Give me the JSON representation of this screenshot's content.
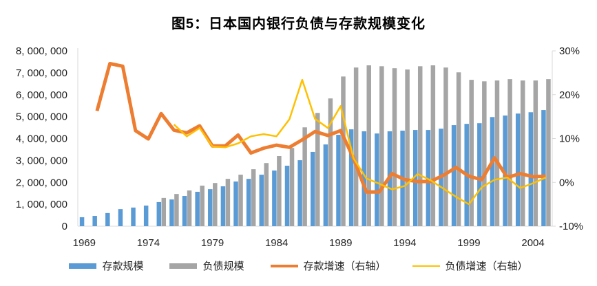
{
  "title": "图5：日本国内银行负债与存款规模变化",
  "chart_data": {
    "type": "bar+line",
    "title": "图5：日本国内银行负债与存款规模变化",
    "x": [
      1969,
      1970,
      1971,
      1972,
      1973,
      1974,
      1975,
      1976,
      1977,
      1978,
      1979,
      1980,
      1981,
      1982,
      1983,
      1984,
      1985,
      1986,
      1987,
      1988,
      1989,
      1990,
      1991,
      1992,
      1993,
      1994,
      1995,
      1996,
      1997,
      1998,
      1999,
      2000,
      2001,
      2002,
      2003,
      2004,
      2005
    ],
    "x_tick_labels": [
      "1969",
      "1974",
      "1979",
      "1984",
      "1989",
      "1994",
      "1999",
      "2004"
    ],
    "left_axis": {
      "ylim": [
        0,
        8000000
      ],
      "tick_labels": [
        "0",
        "1, 000, 000",
        "2, 000, 000",
        "3, 000, 000",
        "4, 000, 000",
        "5, 000, 000",
        "6, 000, 000",
        "7, 000, 000",
        "8, 000, 000"
      ]
    },
    "right_axis": {
      "ylim": [
        -10,
        30
      ],
      "tick_labels": [
        "-10%",
        "0%",
        "10%",
        "20%",
        "30%"
      ]
    },
    "legend_position": "bottom",
    "series": [
      {
        "name": "存款规模",
        "type": "bar",
        "axis": "left",
        "color": "#5B9BD5",
        "values": [
          410000,
          470000,
          600000,
          780000,
          850000,
          940000,
          1100000,
          1220000,
          1380000,
          1570000,
          1690000,
          1820000,
          2040000,
          2160000,
          2350000,
          2540000,
          2760000,
          3010000,
          3390000,
          3730000,
          4170000,
          4420000,
          4330000,
          4230000,
          4330000,
          4360000,
          4390000,
          4390000,
          4450000,
          4610000,
          4670000,
          4700000,
          4980000,
          5050000,
          5140000,
          5200000,
          5300000
        ]
      },
      {
        "name": "负债规模",
        "type": "bar",
        "axis": "left",
        "color": "#A5A5A5",
        "values": [
          null,
          null,
          null,
          null,
          null,
          null,
          1290000,
          1470000,
          1630000,
          1850000,
          1970000,
          2160000,
          2350000,
          2600000,
          2880000,
          3200000,
          3570000,
          4510000,
          5170000,
          5830000,
          6830000,
          7240000,
          7340000,
          7300000,
          7210000,
          7150000,
          7300000,
          7340000,
          7240000,
          7020000,
          6680000,
          6610000,
          6650000,
          6710000,
          6650000,
          6650000,
          6710000
        ]
      },
      {
        "name": "存款增速（右轴）",
        "type": "line",
        "axis": "right",
        "color": "#ED7D31",
        "values": [
          null,
          16.3,
          27.1,
          26.5,
          11.8,
          9.9,
          15.7,
          11.9,
          11.3,
          12.9,
          8.3,
          8.3,
          10.8,
          6.7,
          7.8,
          8.5,
          8.0,
          9.7,
          11.6,
          10.7,
          11.8,
          5.5,
          -2.2,
          -2.2,
          2.0,
          0.6,
          0.2,
          0.2,
          1.6,
          3.4,
          1.4,
          0.6,
          5.6,
          1.1,
          2.0,
          1.3,
          1.4
        ]
      },
      {
        "name": "负债增速（右轴）",
        "type": "line",
        "axis": "right",
        "color": "#FFC000",
        "values": [
          null,
          null,
          null,
          null,
          null,
          null,
          null,
          13.2,
          10.5,
          12.4,
          8.2,
          8.0,
          8.9,
          10.5,
          11.0,
          10.5,
          14.4,
          23.4,
          14.5,
          12.4,
          17.4,
          5.5,
          0.9,
          -0.3,
          -1.6,
          -0.8,
          1.9,
          0.5,
          -1.4,
          -3.3,
          -5.0,
          -1.1,
          0.6,
          1.1,
          -1.3,
          -0.2,
          1.1
        ]
      }
    ],
    "grid": false
  }
}
